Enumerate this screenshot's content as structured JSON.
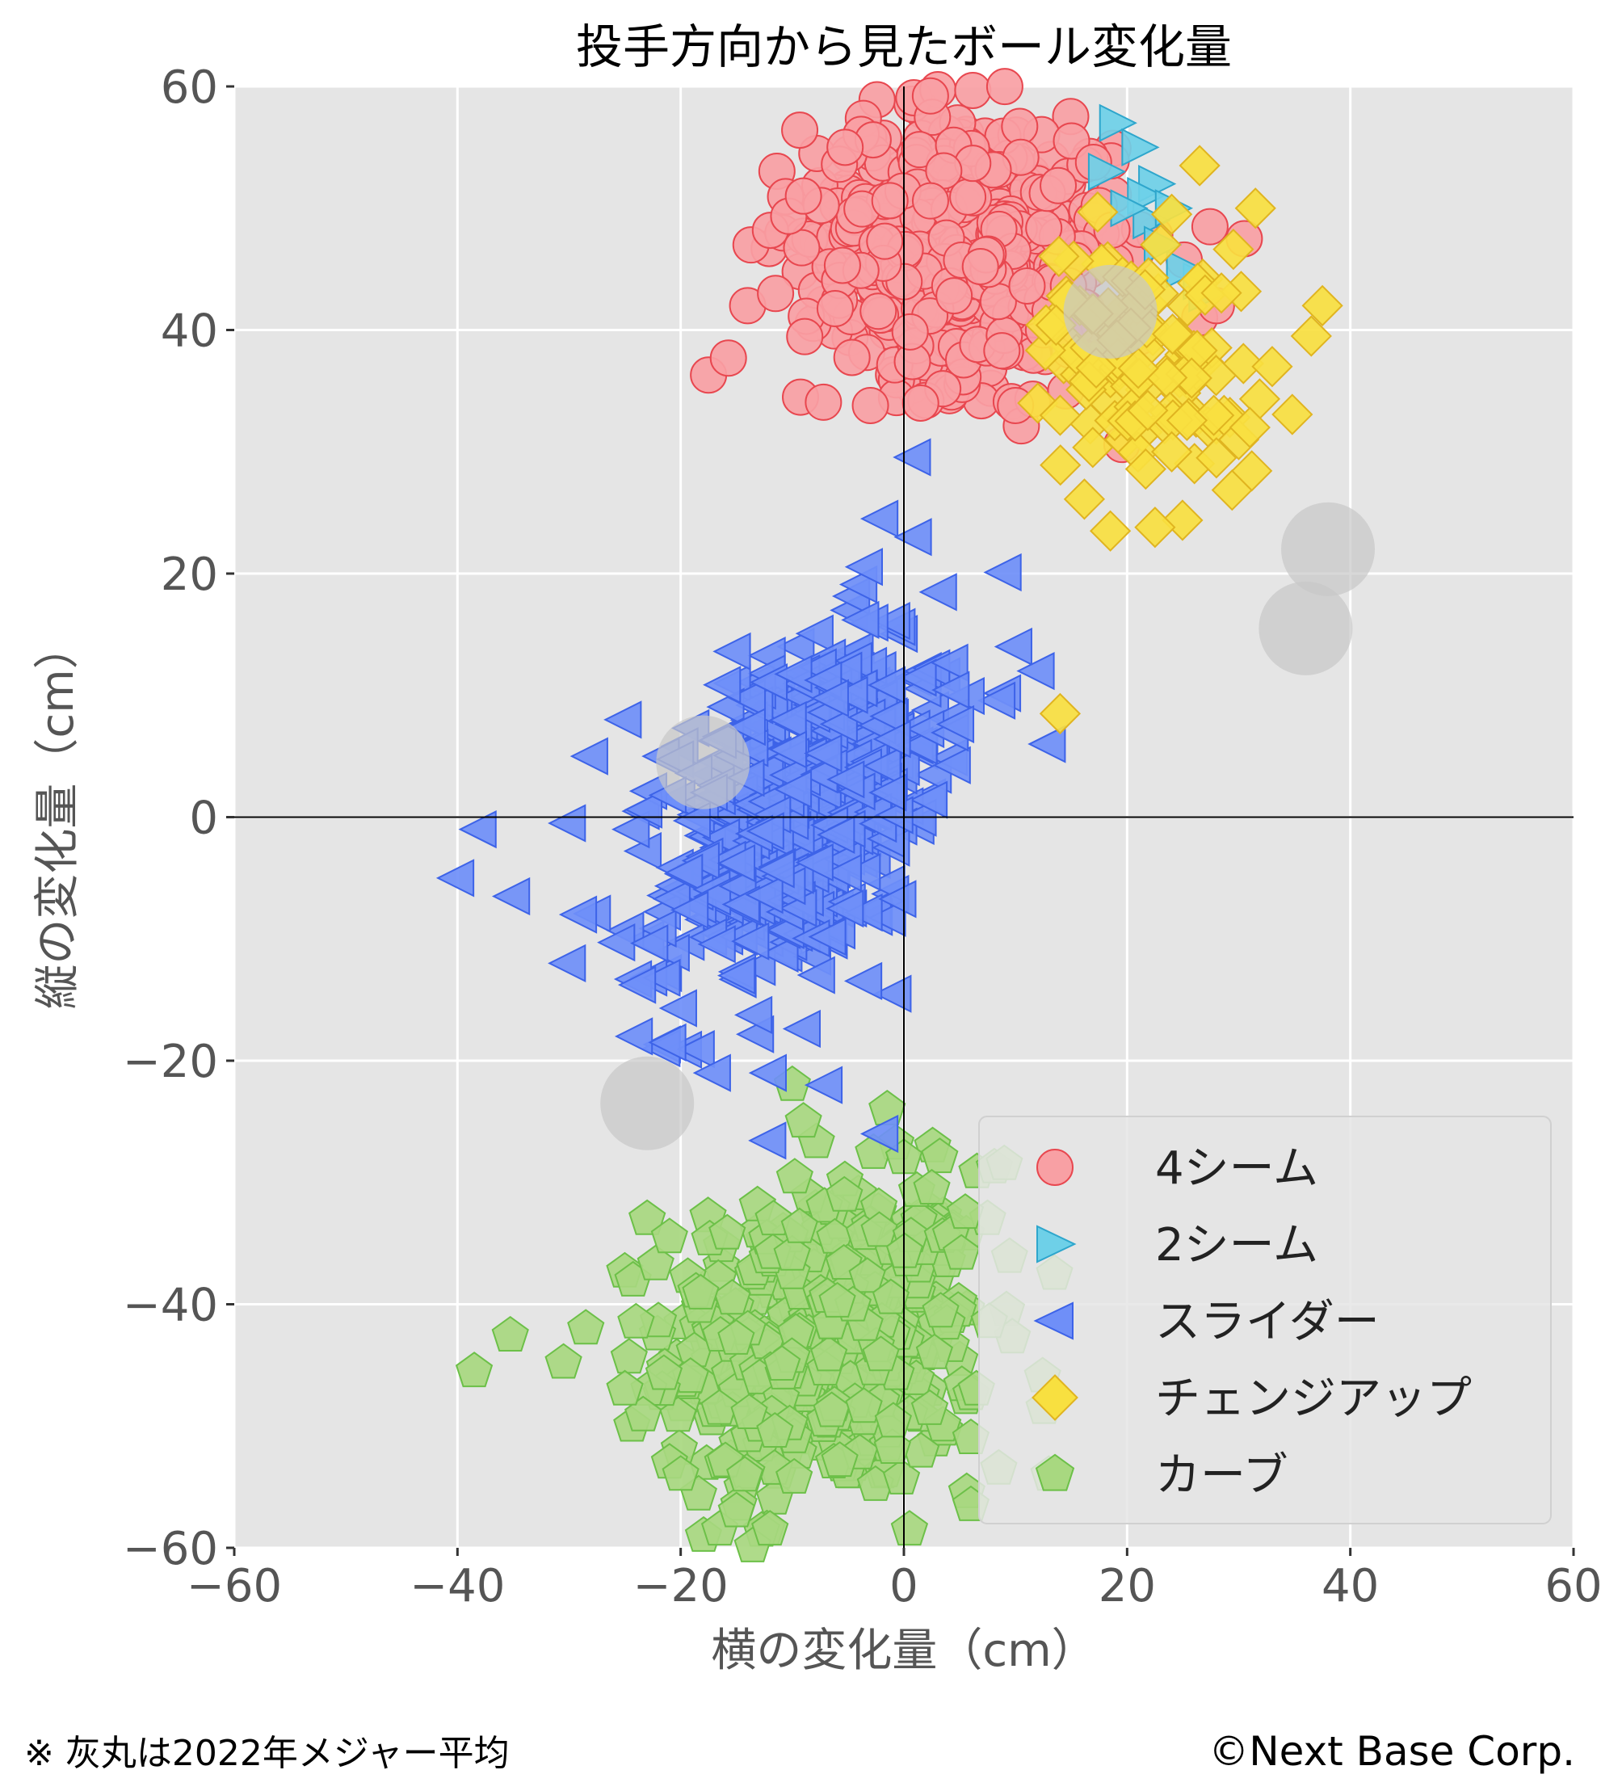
{
  "chart_data": {
    "type": "scatter",
    "title": "投手方向から見たボール変化量",
    "xlabel": "横の変化量（cm）",
    "ylabel": "縦の変化量（cm）",
    "xlim": [
      -60,
      60
    ],
    "ylim": [
      -60,
      60
    ],
    "xticks": [
      -60,
      -40,
      -20,
      0,
      20,
      40,
      60
    ],
    "yticks": [
      -60,
      -40,
      -20,
      0,
      20,
      40,
      60
    ],
    "xtick_labels": [
      "−60",
      "−40",
      "−20",
      "0",
      "20",
      "40",
      "60"
    ],
    "ytick_labels": [
      "−60",
      "−40",
      "−20",
      "0",
      "20",
      "40",
      "60"
    ],
    "grid": true,
    "legend_position": "lower-right",
    "series": [
      {
        "name": "4シーム",
        "marker": "circle",
        "color": "#f8a0a4",
        "edge": "#e8474f",
        "cluster": {
          "cx": 5,
          "cy": 47,
          "sx": 7,
          "sy": 5.5,
          "n": 520,
          "rho": -0.05
        },
        "extra": [
          [
            -14,
            42
          ],
          [
            -11.5,
            43
          ],
          [
            -3,
            33.8
          ],
          [
            1.5,
            34
          ],
          [
            30.5,
            47.5
          ],
          [
            26.5,
            41
          ],
          [
            28,
            42
          ],
          [
            -9,
            51
          ],
          [
            10,
            33.8
          ],
          [
            14.5,
            35
          ]
        ]
      },
      {
        "name": "2シーム",
        "marker": "triangle-right",
        "color": "#6ed0e8",
        "edge": "#2ea6cc",
        "points": [
          [
            19,
            57
          ],
          [
            22.5,
            52
          ],
          [
            21.5,
            51
          ],
          [
            22,
            49
          ],
          [
            26.5,
            44
          ],
          [
            27,
            43
          ],
          [
            25,
            45
          ],
          [
            23,
            47
          ],
          [
            20,
            50
          ],
          [
            24,
            50
          ],
          [
            21,
            55
          ],
          [
            18,
            53
          ]
        ]
      },
      {
        "name": "スライダー",
        "marker": "triangle-left",
        "color": "#6f8ff8",
        "edge": "#3d63e8",
        "cluster": {
          "cx": -9,
          "cy": 1,
          "sx": 6,
          "sy": 7.5,
          "n": 560,
          "rho": 0.45
        },
        "extra": [
          [
            -40,
            -5
          ],
          [
            -38,
            -1
          ],
          [
            -35,
            -6.5
          ],
          [
            -30,
            -0.5
          ],
          [
            -24,
            -18
          ],
          [
            -21,
            -18.5
          ],
          [
            -17,
            -21
          ],
          [
            -12,
            -21
          ],
          [
            -7,
            -22
          ],
          [
            -2,
            -26
          ],
          [
            -2,
            24.5
          ],
          [
            1,
            23
          ],
          [
            10,
            14
          ],
          [
            12,
            12
          ],
          [
            13,
            6
          ],
          [
            -30,
            -12
          ],
          [
            -29,
            -8
          ],
          [
            -28,
            5
          ],
          [
            -25,
            8
          ]
        ]
      },
      {
        "name": "チェンジアップ",
        "marker": "diamond",
        "color": "#f8e040",
        "edge": "#e0b420",
        "cluster": {
          "cx": 22,
          "cy": 37,
          "sx": 5,
          "sy": 5,
          "n": 110,
          "rho": -0.3
        },
        "extra": [
          [
            26.5,
            53.5
          ],
          [
            31.5,
            50
          ],
          [
            37.5,
            42
          ],
          [
            36.5,
            39.5
          ],
          [
            33,
            37
          ],
          [
            18.5,
            23.5
          ],
          [
            22.5,
            23.8
          ],
          [
            14,
            8.5
          ],
          [
            30,
            31
          ],
          [
            31,
            32
          ],
          [
            28,
            29.5
          ],
          [
            24,
            30
          ],
          [
            12,
            34
          ],
          [
            14,
            33
          ],
          [
            23,
            47
          ],
          [
            24,
            49.5
          ]
        ]
      },
      {
        "name": "カーブ",
        "marker": "pentagon",
        "color": "#a8d880",
        "edge": "#6cc048",
        "cluster": {
          "cx": -7,
          "cy": -43,
          "sx": 7,
          "sy": 6.5,
          "n": 470,
          "rho": 0.1
        },
        "extra": [
          [
            -38.5,
            -45.5
          ],
          [
            -30.5,
            -44.8
          ],
          [
            -28.5,
            -42
          ],
          [
            -24,
            -41.5
          ],
          [
            -23,
            -33
          ],
          [
            -21,
            -34.5
          ],
          [
            -10,
            -22
          ],
          [
            -9,
            -25
          ],
          [
            -1.5,
            -24
          ],
          [
            0,
            -28
          ],
          [
            0.5,
            -58.5
          ],
          [
            -12,
            -58.5
          ],
          [
            -16.5,
            -58.5
          ],
          [
            -15,
            -57
          ],
          [
            6,
            -56.5
          ],
          [
            8.5,
            -53.5
          ],
          [
            9,
            -28.5
          ],
          [
            7.5,
            -33
          ],
          [
            6,
            -51
          ],
          [
            6.5,
            -47
          ],
          [
            13.5,
            -37.5
          ],
          [
            13,
            -54
          ],
          [
            5.5,
            -32.5
          ],
          [
            2.5,
            -30.5
          ],
          [
            -25,
            -47
          ],
          [
            -21,
            -53
          ],
          [
            -20,
            -54
          ]
        ]
      }
    ],
    "reference_points": {
      "label": "※ 灰丸は2022年メジャー平均",
      "points": [
        [
          18.5,
          41.5
        ],
        [
          38,
          22
        ],
        [
          36,
          15.5
        ],
        [
          -18,
          4.5
        ],
        [
          -23,
          -23.5
        ]
      ]
    }
  },
  "footer": {
    "note": "※ 灰丸は2022年メジャー平均",
    "credit": "©Next Base Corp."
  }
}
